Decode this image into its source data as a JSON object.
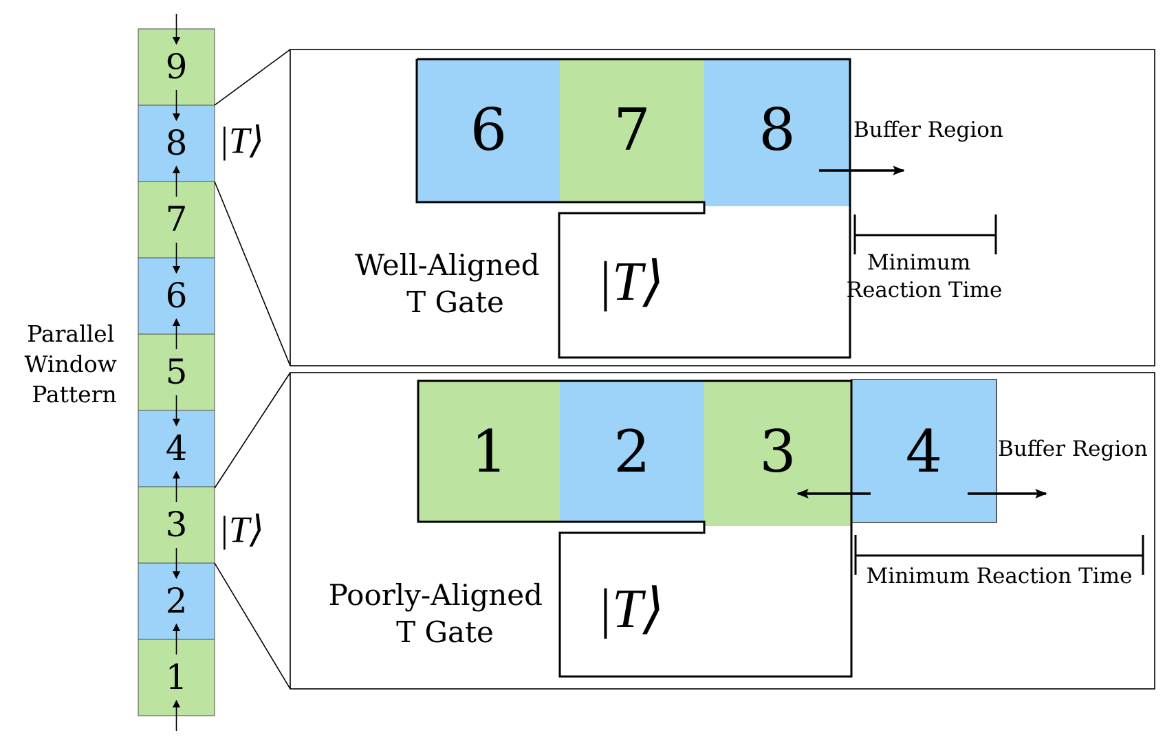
{
  "colors": {
    "green": "#bce4a0",
    "blue": "#9dd3f9",
    "stroke": "#000000",
    "background": "#ffffff"
  },
  "column": {
    "label_lines": [
      "Parallel",
      "Window",
      "Pattern"
    ],
    "windows": [
      {
        "label": "9",
        "color": "green"
      },
      {
        "label": "8",
        "color": "blue",
        "marker": "|T⟩"
      },
      {
        "label": "7",
        "color": "green"
      },
      {
        "label": "6",
        "color": "blue"
      },
      {
        "label": "5",
        "color": "green"
      },
      {
        "label": "4",
        "color": "blue"
      },
      {
        "label": "3",
        "color": "green",
        "marker": "|T⟩"
      },
      {
        "label": "2",
        "color": "blue"
      },
      {
        "label": "1",
        "color": "green"
      }
    ]
  },
  "top_panel": {
    "windows": [
      {
        "label": "6",
        "color": "blue"
      },
      {
        "label": "7",
        "color": "green"
      },
      {
        "label": "8",
        "color": "blue"
      }
    ],
    "gate_label_lines": [
      "Well-Aligned",
      "T Gate"
    ],
    "state_label": "|T⟩",
    "buffer_label": "Buffer Region",
    "reaction_label_lines": [
      "Minimum",
      "Reaction Time"
    ]
  },
  "bottom_panel": {
    "windows": [
      {
        "label": "1",
        "color": "green"
      },
      {
        "label": "2",
        "color": "blue"
      },
      {
        "label": "3",
        "color": "green"
      },
      {
        "label": "4",
        "color": "blue"
      }
    ],
    "gate_label_lines": [
      "Poorly-Aligned",
      "T Gate"
    ],
    "state_label": "|T⟩",
    "buffer_label": "Buffer Region",
    "reaction_label": "Minimum Reaction Time"
  }
}
